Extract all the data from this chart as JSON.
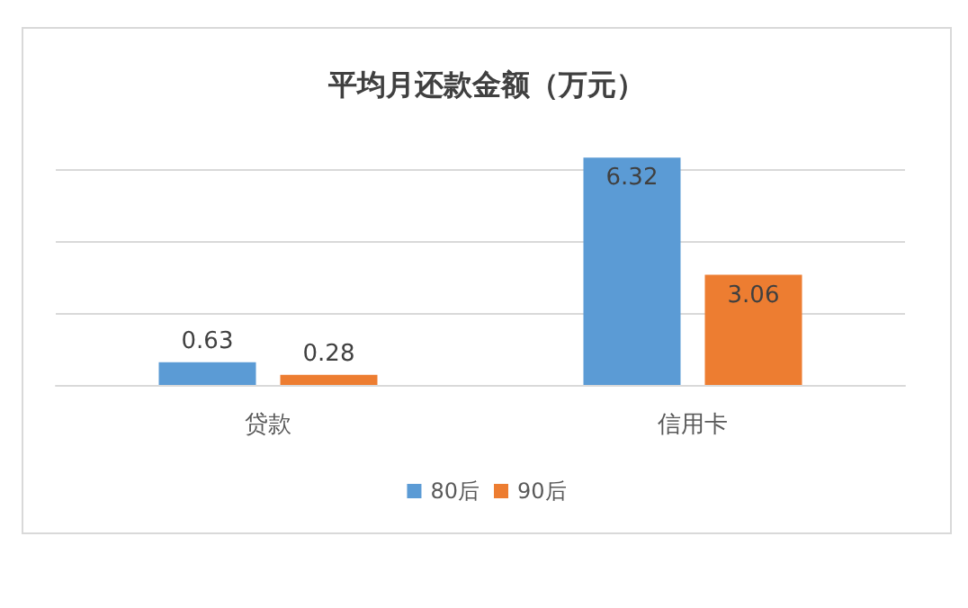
{
  "chart_data": {
    "type": "bar",
    "title": "平均月还款金额（万元）",
    "categories": [
      "贷款",
      "信用卡"
    ],
    "series": [
      {
        "name": "80后",
        "color": "#5b9bd5",
        "values": [
          0.63,
          6.32
        ]
      },
      {
        "name": "90后",
        "color": "#ed7d31",
        "values": [
          0.28,
          3.06
        ]
      }
    ],
    "yticks": [
      {
        "value": 0,
        "label": null
      },
      {
        "value": 2,
        "label": null
      },
      {
        "value": 4,
        "label": null
      },
      {
        "value": 6,
        "label": null
      }
    ],
    "tick_labels": "x",
    "grid": "y",
    "data_labels": true,
    "legend": "bottom"
  }
}
